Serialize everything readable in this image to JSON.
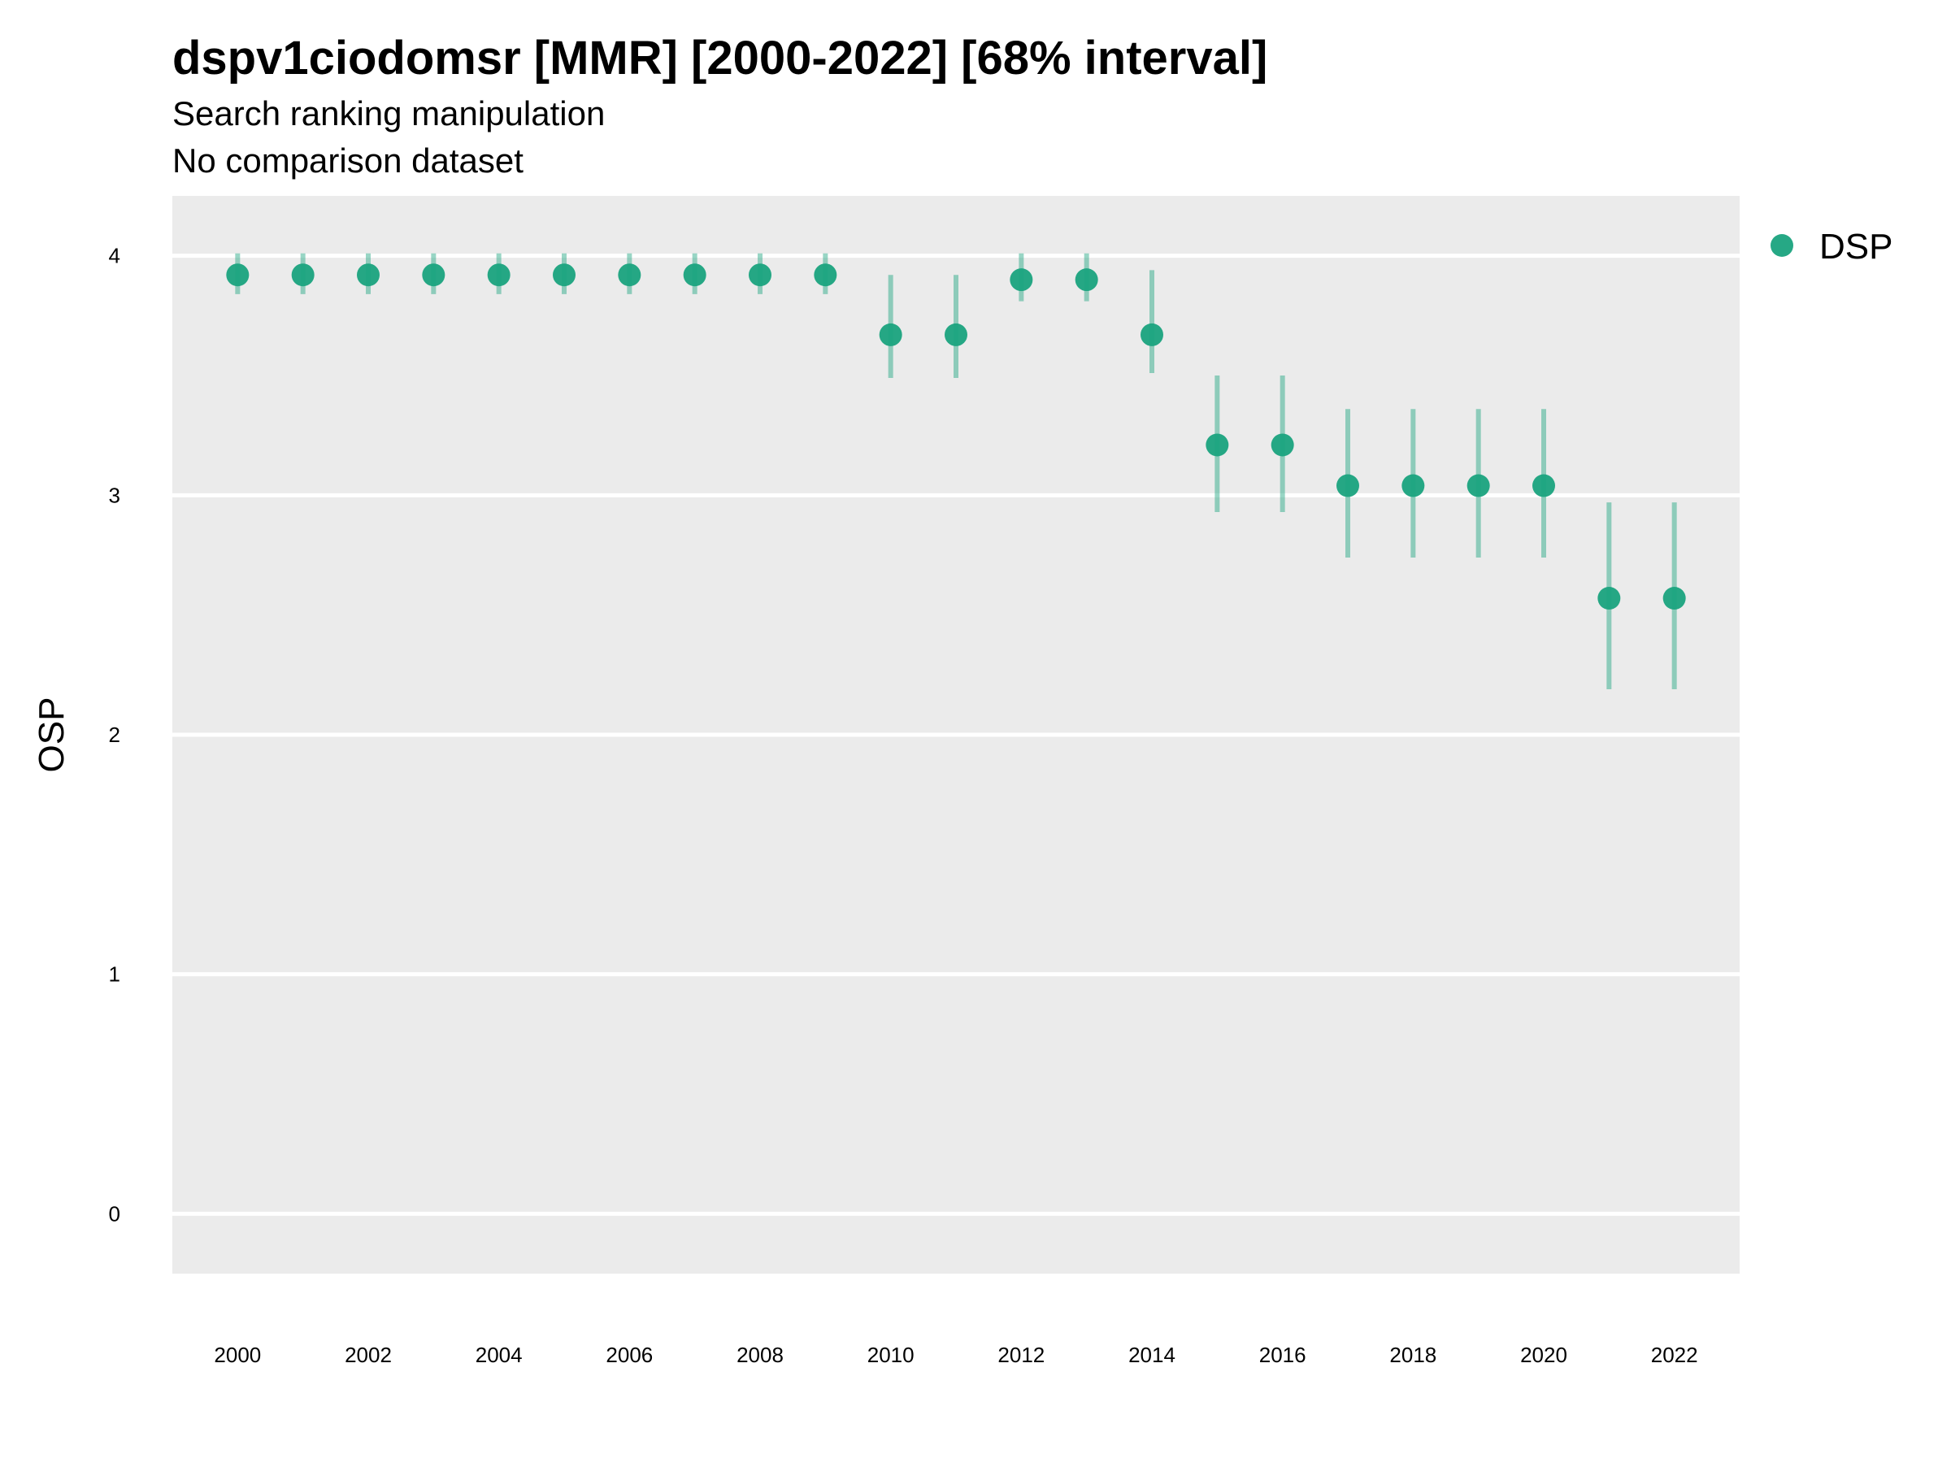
{
  "chart_data": {
    "type": "scatter",
    "title": "dspv1ciodomsr [MMR] [2000-2022] [68% interval]",
    "subtitle": [
      "Search ranking manipulation",
      "No comparison dataset"
    ],
    "xlabel": "",
    "ylabel": "OSP",
    "xlim": [
      1999,
      2023
    ],
    "ylim": [
      -0.25,
      4.25
    ],
    "x_ticks": [
      2000,
      2002,
      2004,
      2006,
      2008,
      2010,
      2012,
      2014,
      2016,
      2018,
      2020,
      2022
    ],
    "y_ticks": [
      0,
      1,
      2,
      3,
      4
    ],
    "grid": true,
    "legend_position": "right",
    "series": [
      {
        "name": "DSP",
        "color": "#1aa37e",
        "x": [
          2000,
          2001,
          2002,
          2003,
          2004,
          2005,
          2006,
          2007,
          2008,
          2009,
          2010,
          2011,
          2012,
          2013,
          2014,
          2015,
          2016,
          2017,
          2018,
          2019,
          2020,
          2021,
          2022
        ],
        "y": [
          3.92,
          3.92,
          3.92,
          3.92,
          3.92,
          3.92,
          3.92,
          3.92,
          3.92,
          3.92,
          3.67,
          3.67,
          3.9,
          3.9,
          3.67,
          3.21,
          3.21,
          3.04,
          3.04,
          3.04,
          3.04,
          2.57,
          2.57
        ],
        "lower": [
          3.84,
          3.84,
          3.84,
          3.84,
          3.84,
          3.84,
          3.84,
          3.84,
          3.84,
          3.84,
          3.49,
          3.49,
          3.81,
          3.81,
          3.51,
          2.93,
          2.93,
          2.74,
          2.74,
          2.74,
          2.74,
          2.19,
          2.19
        ],
        "upper": [
          4.01,
          4.01,
          4.01,
          4.01,
          4.01,
          4.01,
          4.01,
          4.01,
          4.01,
          4.01,
          3.92,
          3.92,
          4.01,
          4.01,
          3.94,
          3.5,
          3.5,
          3.36,
          3.36,
          3.36,
          3.36,
          2.97,
          2.97
        ]
      }
    ]
  }
}
